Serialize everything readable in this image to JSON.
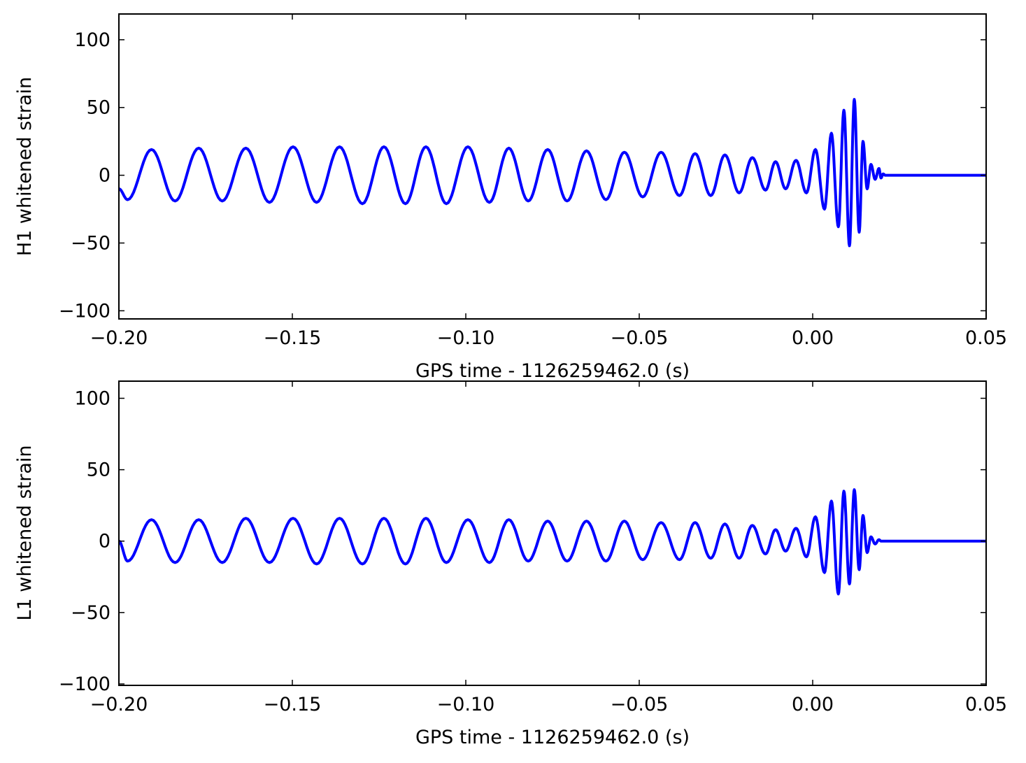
{
  "chart_data": [
    {
      "type": "line",
      "title": "",
      "xlabel": "GPS time - 1126259462.0 (s)",
      "ylabel": "H1 whitened strain",
      "xlim": [
        -0.2,
        0.05
      ],
      "ylim": [
        -106,
        119
      ],
      "xticks": [
        "−0.20",
        "−0.15",
        "−0.10",
        "−0.05",
        "0.00",
        "0.05"
      ],
      "yticks": [
        "−100",
        "−50",
        "0",
        "50",
        "100"
      ],
      "grid": false,
      "legend": "none",
      "color": "#0000ff",
      "series": [
        {
          "x": [
            -0.2,
            -0.1975,
            -0.1906,
            -0.1838,
            -0.177,
            -0.1702,
            -0.1634,
            -0.1566,
            -0.1498,
            -0.143,
            -0.1364,
            -0.1298,
            -0.1236,
            -0.1174,
            -0.1115,
            -0.1056,
            -0.0994,
            -0.0932,
            -0.0876,
            -0.082,
            -0.0764,
            -0.0708,
            -0.0652,
            -0.0596,
            -0.0543,
            -0.049,
            -0.0437,
            -0.0384,
            -0.0339,
            -0.0294,
            -0.0253,
            -0.0212,
            -0.0174,
            -0.0136,
            -0.0107,
            -0.0078,
            -0.0048,
            -0.0018,
            0.0008,
            0.0034,
            0.0054,
            0.0074,
            0.009,
            0.0106,
            0.012,
            0.0134,
            0.0145,
            0.0157,
            0.0168,
            0.018,
            0.0191,
            0.0197,
            0.0203,
            0.0209,
            0.0215,
            0.0222,
            0.023,
            0.0245,
            0.027,
            0.05
          ],
          "y": [
            -10,
            -18,
            19,
            -19,
            20,
            -19,
            20,
            -20,
            21,
            -20,
            21,
            -21,
            21,
            -21,
            21,
            -21,
            21,
            -20,
            20,
            -19,
            19,
            -19,
            18,
            -18,
            17,
            -16,
            17,
            -15,
            16,
            -15,
            15,
            -13,
            13,
            -11,
            10,
            -10,
            11,
            -13,
            19,
            -25,
            31,
            -38,
            48,
            -52,
            56,
            -42,
            25,
            -10,
            8,
            -3,
            5,
            -2,
            1,
            0,
            0,
            0,
            0,
            0,
            0,
            0
          ]
        }
      ]
    },
    {
      "type": "line",
      "title": "",
      "xlabel": "GPS time - 1126259462.0 (s)",
      "ylabel": "L1 whitened strain",
      "xlim": [
        -0.2,
        0.05
      ],
      "ylim": [
        -101,
        112
      ],
      "xticks": [
        "−0.20",
        "−0.15",
        "−0.10",
        "−0.05",
        "0.00",
        "0.05"
      ],
      "yticks": [
        "−100",
        "−50",
        "0",
        "50",
        "100"
      ],
      "grid": false,
      "legend": "none",
      "color": "#0000ff",
      "series": [
        {
          "x": [
            -0.2,
            -0.1975,
            -0.1906,
            -0.1838,
            -0.177,
            -0.1702,
            -0.1634,
            -0.1566,
            -0.1498,
            -0.143,
            -0.1364,
            -0.1298,
            -0.1236,
            -0.1174,
            -0.1115,
            -0.1056,
            -0.0994,
            -0.0932,
            -0.0876,
            -0.082,
            -0.0764,
            -0.0708,
            -0.0652,
            -0.0596,
            -0.0543,
            -0.049,
            -0.0437,
            -0.0384,
            -0.0339,
            -0.0294,
            -0.0253,
            -0.0212,
            -0.0174,
            -0.0136,
            -0.0107,
            -0.0078,
            -0.0048,
            -0.0018,
            0.0008,
            0.0034,
            0.0054,
            0.0074,
            0.009,
            0.0106,
            0.012,
            0.0134,
            0.0145,
            0.0157,
            0.0168,
            0.018,
            0.0191,
            0.0197,
            0.0203,
            0.0209,
            0.0215,
            0.0222,
            0.023,
            0.0245,
            0.027,
            0.05
          ],
          "y": [
            0,
            -14,
            15,
            -15,
            15,
            -15,
            16,
            -15,
            16,
            -16,
            16,
            -16,
            16,
            -16,
            16,
            -15,
            15,
            -15,
            15,
            -14,
            14,
            -14,
            14,
            -14,
            14,
            -13,
            13,
            -13,
            13,
            -12,
            12,
            -12,
            11,
            -9,
            8,
            -7,
            9,
            -11,
            17,
            -22,
            28,
            -37,
            35,
            -30,
            36,
            -20,
            18,
            -8,
            3,
            -2,
            1,
            0,
            0,
            0,
            0,
            0,
            0,
            0,
            0,
            0
          ]
        }
      ]
    }
  ]
}
